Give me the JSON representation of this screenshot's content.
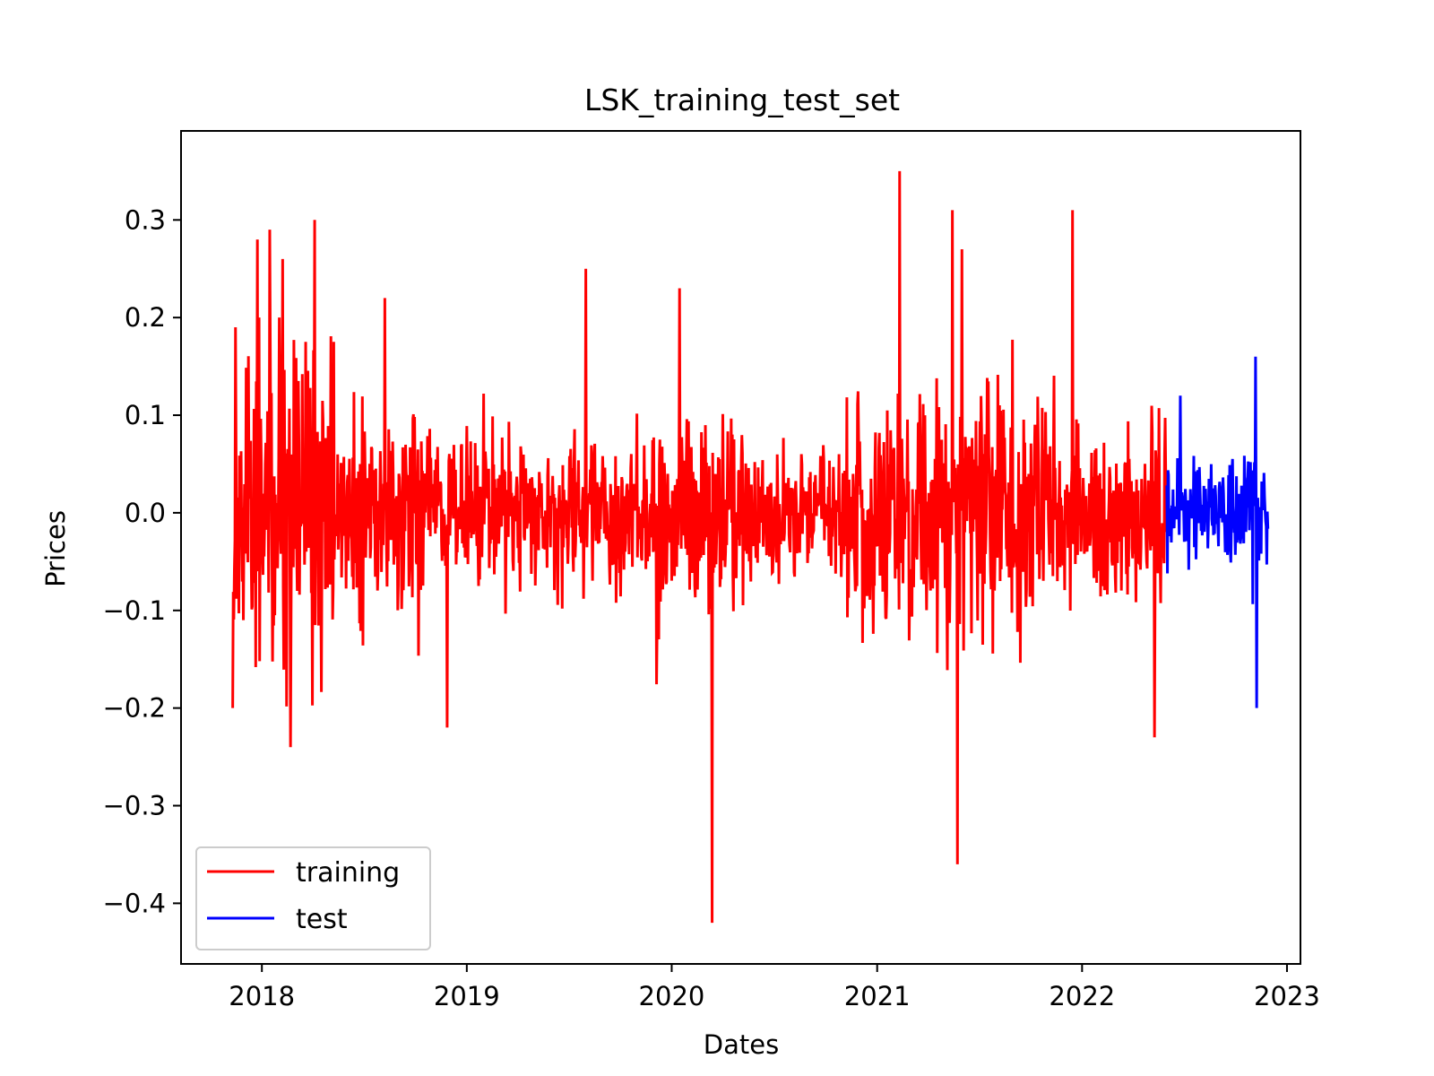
{
  "chart_data": {
    "type": "line",
    "title": "LSK_training_test_set",
    "xlabel": "Dates",
    "ylabel": "Prices",
    "xlim": [
      "2017-08-10",
      "2023-01-25"
    ],
    "ylim": [
      -0.4621,
      0.3912
    ],
    "x_ticks": [
      "2018-01-01",
      "2019-01-01",
      "2020-01-01",
      "2021-01-01",
      "2022-01-01",
      "2023-01-01"
    ],
    "x_tick_labels": [
      "2018",
      "2019",
      "2020",
      "2021",
      "2022",
      "2023"
    ],
    "y_ticks": [
      -0.4,
      -0.3,
      -0.2,
      -0.1,
      0.0,
      0.1,
      0.2,
      0.3
    ],
    "y_tick_labels": [
      "−0.4",
      "−0.3",
      "−0.2",
      "−0.1",
      "0.0",
      "0.1",
      "0.2",
      "0.3"
    ],
    "grid": false,
    "legend_position": "lower-left",
    "series": [
      {
        "name": "training",
        "color": "#ff0000",
        "x_start": "2017-11-10",
        "x_end": "2022-06-01",
        "peaks": [
          {
            "x": "2017-11-15",
            "y": 0.19
          },
          {
            "x": "2017-12-24",
            "y": 0.28
          },
          {
            "x": "2018-01-15",
            "y": 0.29
          },
          {
            "x": "2018-02-07",
            "y": 0.26
          },
          {
            "x": "2018-02-21",
            "y": -0.24
          },
          {
            "x": "2018-04-05",
            "y": 0.3
          },
          {
            "x": "2018-08-08",
            "y": 0.22
          },
          {
            "x": "2018-11-27",
            "y": -0.22
          },
          {
            "x": "2019-08-01",
            "y": 0.25
          },
          {
            "x": "2020-01-15",
            "y": 0.23
          },
          {
            "x": "2020-03-13",
            "y": -0.42
          },
          {
            "x": "2021-02-10",
            "y": 0.35
          },
          {
            "x": "2021-05-15",
            "y": 0.31
          },
          {
            "x": "2021-05-24",
            "y": -0.36
          },
          {
            "x": "2021-06-01",
            "y": 0.27
          },
          {
            "x": "2021-12-15",
            "y": 0.31
          },
          {
            "x": "2022-05-10",
            "y": -0.23
          }
        ]
      },
      {
        "name": "test",
        "color": "#0000ff",
        "x_start": "2022-06-01",
        "x_end": "2022-11-28",
        "peaks": [
          {
            "x": "2022-06-25",
            "y": 0.12
          },
          {
            "x": "2022-11-06",
            "y": 0.16
          },
          {
            "x": "2022-11-08",
            "y": -0.2
          }
        ]
      }
    ]
  }
}
